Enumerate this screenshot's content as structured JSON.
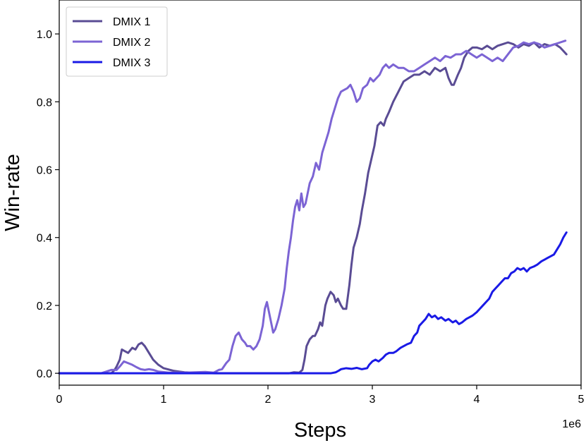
{
  "chart_data": {
    "type": "line",
    "title": "",
    "xlabel": "Steps",
    "ylabel": "Win-rate",
    "x_offset_label": "1e6",
    "xlim": [
      0,
      5
    ],
    "ylim": [
      -0.035,
      1.1
    ],
    "x_ticks": [
      0,
      1,
      2,
      3,
      4,
      5
    ],
    "x_tick_labels": [
      "0",
      "1",
      "2",
      "3",
      "4",
      "5"
    ],
    "y_ticks": [
      0.0,
      0.2,
      0.4,
      0.6,
      0.8,
      1.0
    ],
    "y_tick_labels": [
      "0.0",
      "0.2",
      "0.4",
      "0.6",
      "0.8",
      "1.0"
    ],
    "grid": false,
    "legend_position": "top-left",
    "series": [
      {
        "name": "DMIX 1",
        "color": "#5a4c94",
        "points": [
          [
            0,
            0
          ],
          [
            0.5,
            0
          ],
          [
            0.53,
            0.01
          ],
          [
            0.55,
            0.02
          ],
          [
            0.58,
            0.04
          ],
          [
            0.6,
            0.07
          ],
          [
            0.63,
            0.065
          ],
          [
            0.66,
            0.06
          ],
          [
            0.7,
            0.075
          ],
          [
            0.73,
            0.07
          ],
          [
            0.76,
            0.085
          ],
          [
            0.79,
            0.09
          ],
          [
            0.82,
            0.08
          ],
          [
            0.86,
            0.06
          ],
          [
            0.9,
            0.04
          ],
          [
            0.95,
            0.025
          ],
          [
            1.0,
            0.015
          ],
          [
            1.1,
            0.007
          ],
          [
            1.2,
            0.003
          ],
          [
            1.35,
            0.001
          ],
          [
            1.5,
            0
          ],
          [
            2.2,
            0
          ],
          [
            2.25,
            0.003
          ],
          [
            2.3,
            0.002
          ],
          [
            2.33,
            0.01
          ],
          [
            2.35,
            0.04
          ],
          [
            2.37,
            0.08
          ],
          [
            2.4,
            0.1
          ],
          [
            2.43,
            0.11
          ],
          [
            2.45,
            0.11
          ],
          [
            2.48,
            0.13
          ],
          [
            2.5,
            0.15
          ],
          [
            2.52,
            0.14
          ],
          [
            2.55,
            0.2
          ],
          [
            2.57,
            0.22
          ],
          [
            2.6,
            0.24
          ],
          [
            2.63,
            0.23
          ],
          [
            2.65,
            0.21
          ],
          [
            2.67,
            0.22
          ],
          [
            2.7,
            0.2
          ],
          [
            2.72,
            0.19
          ],
          [
            2.75,
            0.19
          ],
          [
            2.78,
            0.26
          ],
          [
            2.8,
            0.32
          ],
          [
            2.82,
            0.37
          ],
          [
            2.85,
            0.4
          ],
          [
            2.88,
            0.44
          ],
          [
            2.9,
            0.48
          ],
          [
            2.93,
            0.53
          ],
          [
            2.96,
            0.59
          ],
          [
            2.99,
            0.63
          ],
          [
            3.02,
            0.67
          ],
          [
            3.05,
            0.73
          ],
          [
            3.08,
            0.74
          ],
          [
            3.11,
            0.73
          ],
          [
            3.13,
            0.75
          ],
          [
            3.16,
            0.77
          ],
          [
            3.2,
            0.8
          ],
          [
            3.25,
            0.83
          ],
          [
            3.3,
            0.86
          ],
          [
            3.35,
            0.87
          ],
          [
            3.4,
            0.88
          ],
          [
            3.45,
            0.88
          ],
          [
            3.5,
            0.89
          ],
          [
            3.55,
            0.88
          ],
          [
            3.6,
            0.9
          ],
          [
            3.65,
            0.89
          ],
          [
            3.7,
            0.9
          ],
          [
            3.73,
            0.87
          ],
          [
            3.76,
            0.85
          ],
          [
            3.78,
            0.85
          ],
          [
            3.82,
            0.88
          ],
          [
            3.85,
            0.9
          ],
          [
            3.88,
            0.93
          ],
          [
            3.92,
            0.95
          ],
          [
            3.96,
            0.96
          ],
          [
            4.0,
            0.96
          ],
          [
            4.05,
            0.955
          ],
          [
            4.1,
            0.965
          ],
          [
            4.15,
            0.955
          ],
          [
            4.2,
            0.965
          ],
          [
            4.25,
            0.97
          ],
          [
            4.3,
            0.975
          ],
          [
            4.35,
            0.97
          ],
          [
            4.4,
            0.96
          ],
          [
            4.45,
            0.97
          ],
          [
            4.5,
            0.965
          ],
          [
            4.55,
            0.975
          ],
          [
            4.6,
            0.96
          ],
          [
            4.65,
            0.97
          ],
          [
            4.7,
            0.965
          ],
          [
            4.75,
            0.97
          ],
          [
            4.8,
            0.96
          ],
          [
            4.83,
            0.95
          ],
          [
            4.86,
            0.94
          ]
        ]
      },
      {
        "name": "DMIX 2",
        "color": "#7c64d4",
        "points": [
          [
            0,
            0
          ],
          [
            0.4,
            0
          ],
          [
            0.45,
            0.005
          ],
          [
            0.5,
            0.01
          ],
          [
            0.55,
            0.01
          ],
          [
            0.58,
            0.02
          ],
          [
            0.62,
            0.035
          ],
          [
            0.66,
            0.03
          ],
          [
            0.7,
            0.025
          ],
          [
            0.74,
            0.018
          ],
          [
            0.78,
            0.012
          ],
          [
            0.82,
            0.01
          ],
          [
            0.86,
            0.012
          ],
          [
            0.9,
            0.01
          ],
          [
            0.95,
            0.005
          ],
          [
            1.05,
            0.002
          ],
          [
            1.2,
            0.002
          ],
          [
            1.4,
            0.004
          ],
          [
            1.48,
            0.002
          ],
          [
            1.5,
            0.005
          ],
          [
            1.53,
            0.01
          ],
          [
            1.56,
            0.012
          ],
          [
            1.6,
            0.03
          ],
          [
            1.63,
            0.04
          ],
          [
            1.66,
            0.08
          ],
          [
            1.69,
            0.11
          ],
          [
            1.72,
            0.12
          ],
          [
            1.75,
            0.1
          ],
          [
            1.78,
            0.09
          ],
          [
            1.8,
            0.08
          ],
          [
            1.83,
            0.08
          ],
          [
            1.86,
            0.07
          ],
          [
            1.89,
            0.08
          ],
          [
            1.92,
            0.1
          ],
          [
            1.95,
            0.14
          ],
          [
            1.97,
            0.19
          ],
          [
            1.99,
            0.21
          ],
          [
            2.01,
            0.18
          ],
          [
            2.03,
            0.15
          ],
          [
            2.05,
            0.12
          ],
          [
            2.07,
            0.13
          ],
          [
            2.1,
            0.16
          ],
          [
            2.13,
            0.2
          ],
          [
            2.16,
            0.25
          ],
          [
            2.18,
            0.31
          ],
          [
            2.2,
            0.36
          ],
          [
            2.22,
            0.4
          ],
          [
            2.24,
            0.45
          ],
          [
            2.26,
            0.49
          ],
          [
            2.28,
            0.51
          ],
          [
            2.3,
            0.48
          ],
          [
            2.32,
            0.53
          ],
          [
            2.34,
            0.49
          ],
          [
            2.36,
            0.5
          ],
          [
            2.38,
            0.53
          ],
          [
            2.4,
            0.56
          ],
          [
            2.43,
            0.58
          ],
          [
            2.46,
            0.62
          ],
          [
            2.49,
            0.6
          ],
          [
            2.52,
            0.65
          ],
          [
            2.55,
            0.68
          ],
          [
            2.58,
            0.71
          ],
          [
            2.61,
            0.75
          ],
          [
            2.64,
            0.78
          ],
          [
            2.67,
            0.81
          ],
          [
            2.7,
            0.83
          ],
          [
            2.73,
            0.835
          ],
          [
            2.76,
            0.84
          ],
          [
            2.79,
            0.85
          ],
          [
            2.82,
            0.83
          ],
          [
            2.85,
            0.8
          ],
          [
            2.88,
            0.81
          ],
          [
            2.91,
            0.84
          ],
          [
            2.95,
            0.85
          ],
          [
            2.98,
            0.87
          ],
          [
            3.01,
            0.86
          ],
          [
            3.04,
            0.87
          ],
          [
            3.07,
            0.88
          ],
          [
            3.1,
            0.9
          ],
          [
            3.13,
            0.91
          ],
          [
            3.16,
            0.9
          ],
          [
            3.2,
            0.91
          ],
          [
            3.25,
            0.9
          ],
          [
            3.3,
            0.9
          ],
          [
            3.35,
            0.89
          ],
          [
            3.4,
            0.89
          ],
          [
            3.45,
            0.9
          ],
          [
            3.5,
            0.91
          ],
          [
            3.55,
            0.92
          ],
          [
            3.6,
            0.93
          ],
          [
            3.65,
            0.92
          ],
          [
            3.7,
            0.935
          ],
          [
            3.75,
            0.93
          ],
          [
            3.8,
            0.94
          ],
          [
            3.85,
            0.94
          ],
          [
            3.9,
            0.95
          ],
          [
            3.95,
            0.94
          ],
          [
            4.0,
            0.93
          ],
          [
            4.05,
            0.94
          ],
          [
            4.1,
            0.93
          ],
          [
            4.15,
            0.92
          ],
          [
            4.2,
            0.93
          ],
          [
            4.25,
            0.92
          ],
          [
            4.3,
            0.94
          ],
          [
            4.35,
            0.96
          ],
          [
            4.4,
            0.965
          ],
          [
            4.45,
            0.975
          ],
          [
            4.5,
            0.97
          ],
          [
            4.55,
            0.975
          ],
          [
            4.6,
            0.97
          ],
          [
            4.65,
            0.96
          ],
          [
            4.7,
            0.965
          ],
          [
            4.75,
            0.97
          ],
          [
            4.8,
            0.975
          ],
          [
            4.85,
            0.98
          ]
        ]
      },
      {
        "name": "DMIX 3",
        "color": "#1a1ae6",
        "points": [
          [
            0,
            0
          ],
          [
            2.6,
            0
          ],
          [
            2.65,
            0.003
          ],
          [
            2.68,
            0.008
          ],
          [
            2.7,
            0.012
          ],
          [
            2.75,
            0.015
          ],
          [
            2.8,
            0.013
          ],
          [
            2.85,
            0.016
          ],
          [
            2.9,
            0.012
          ],
          [
            2.95,
            0.015
          ],
          [
            2.97,
            0.025
          ],
          [
            3.0,
            0.035
          ],
          [
            3.03,
            0.04
          ],
          [
            3.06,
            0.035
          ],
          [
            3.1,
            0.045
          ],
          [
            3.13,
            0.055
          ],
          [
            3.16,
            0.06
          ],
          [
            3.2,
            0.06
          ],
          [
            3.23,
            0.065
          ],
          [
            3.27,
            0.075
          ],
          [
            3.3,
            0.08
          ],
          [
            3.33,
            0.085
          ],
          [
            3.37,
            0.09
          ],
          [
            3.4,
            0.11
          ],
          [
            3.43,
            0.12
          ],
          [
            3.45,
            0.14
          ],
          [
            3.48,
            0.15
          ],
          [
            3.51,
            0.16
          ],
          [
            3.54,
            0.175
          ],
          [
            3.57,
            0.165
          ],
          [
            3.6,
            0.17
          ],
          [
            3.63,
            0.16
          ],
          [
            3.66,
            0.165
          ],
          [
            3.7,
            0.155
          ],
          [
            3.73,
            0.16
          ],
          [
            3.77,
            0.15
          ],
          [
            3.8,
            0.155
          ],
          [
            3.83,
            0.145
          ],
          [
            3.86,
            0.15
          ],
          [
            3.9,
            0.16
          ],
          [
            3.93,
            0.165
          ],
          [
            3.96,
            0.17
          ],
          [
            4.0,
            0.18
          ],
          [
            4.03,
            0.19
          ],
          [
            4.06,
            0.2
          ],
          [
            4.09,
            0.21
          ],
          [
            4.12,
            0.22
          ],
          [
            4.15,
            0.24
          ],
          [
            4.18,
            0.25
          ],
          [
            4.21,
            0.26
          ],
          [
            4.24,
            0.27
          ],
          [
            4.27,
            0.28
          ],
          [
            4.3,
            0.28
          ],
          [
            4.33,
            0.295
          ],
          [
            4.36,
            0.3
          ],
          [
            4.39,
            0.31
          ],
          [
            4.42,
            0.305
          ],
          [
            4.45,
            0.31
          ],
          [
            4.48,
            0.3
          ],
          [
            4.51,
            0.31
          ],
          [
            4.55,
            0.315
          ],
          [
            4.58,
            0.32
          ],
          [
            4.62,
            0.33
          ],
          [
            4.65,
            0.335
          ],
          [
            4.68,
            0.34
          ],
          [
            4.71,
            0.345
          ],
          [
            4.74,
            0.35
          ],
          [
            4.77,
            0.365
          ],
          [
            4.8,
            0.38
          ],
          [
            4.83,
            0.4
          ],
          [
            4.86,
            0.415
          ]
        ]
      }
    ]
  }
}
